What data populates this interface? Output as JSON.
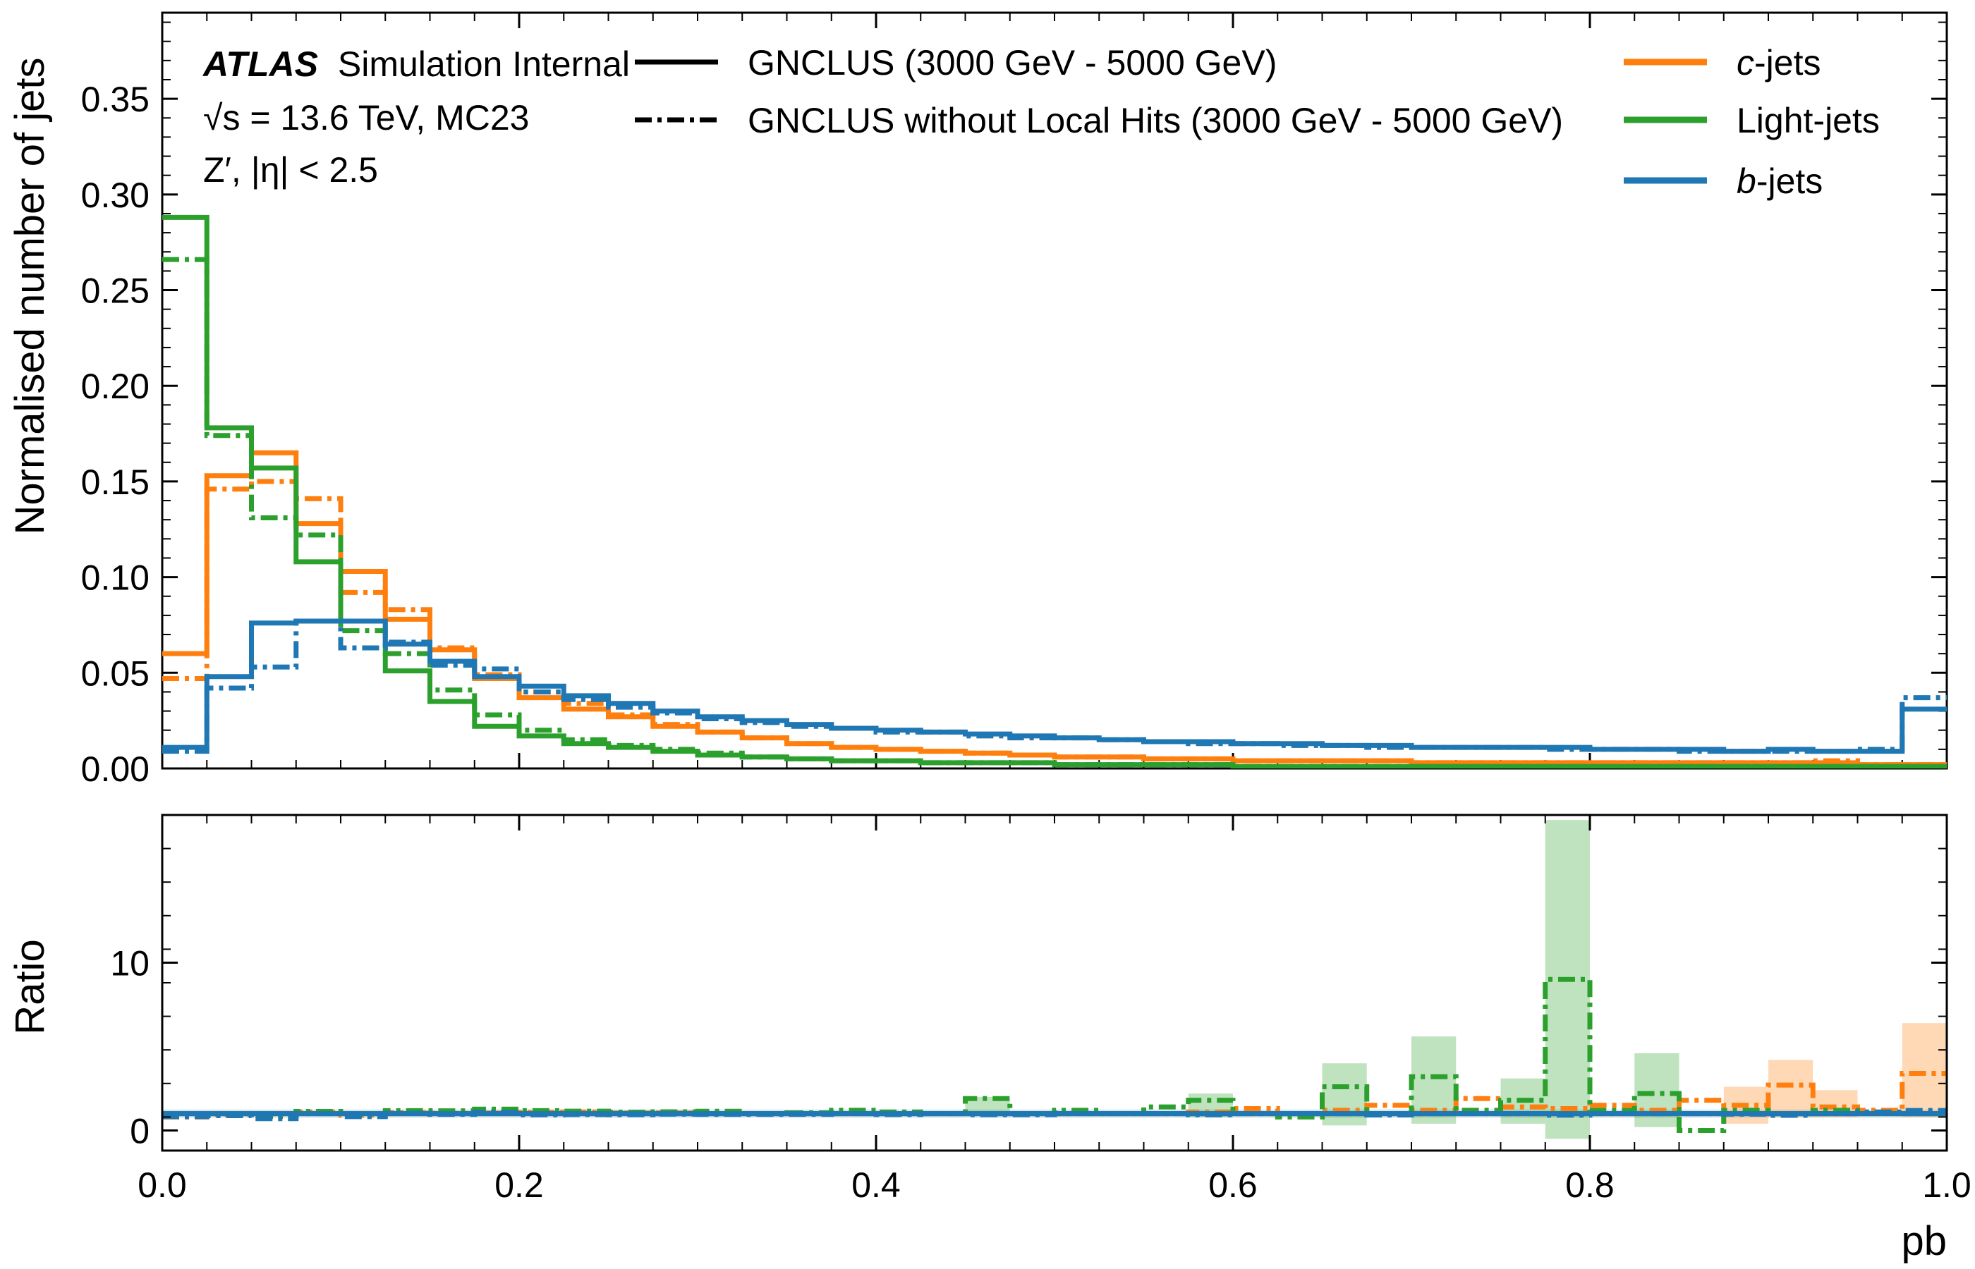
{
  "atlas_label": {
    "experiment": "ATLAS",
    "status": "Simulation Internal",
    "line2": "√s = 13.6 TeV, MC23",
    "line3": "Z′, |η| < 2.5"
  },
  "legend": {
    "styles": [
      {
        "label": "GNCLUS (3000 GeV - 5000 GeV)",
        "dash": "solid"
      },
      {
        "label": "GNCLUS without Local Hits (3000 GeV - 5000 GeV)",
        "dash": "dashdot"
      }
    ],
    "flavours": [
      {
        "prefix": "c",
        "suffix": "-jets",
        "italic": true,
        "color": "#ff7f0e"
      },
      {
        "prefix": "",
        "suffix": "Light-jets",
        "italic": false,
        "color": "#2ca02c"
      },
      {
        "prefix": "b",
        "suffix": "-jets",
        "italic": true,
        "color": "#1f77b4"
      }
    ]
  },
  "colors": {
    "c": "#ff7f0e",
    "light": "#2ca02c",
    "b": "#1f77b4"
  },
  "chart_data": [
    {
      "type": "line",
      "panel": "main",
      "step": "histogram",
      "xlabel": "pb",
      "ylabel": "Normalised number of jets",
      "xlim": [
        0.0,
        1.0
      ],
      "ylim": [
        0.0,
        0.395
      ],
      "xticks": [
        "0.0",
        "0.2",
        "0.4",
        "0.6",
        "0.8",
        "1.0"
      ],
      "yticks": [
        "0.00",
        "0.05",
        "0.10",
        "0.15",
        "0.20",
        "0.25",
        "0.30",
        "0.35"
      ],
      "bin_width": 0.025,
      "bin_edges_start": 0.0,
      "series": [
        {
          "name": "c-jets",
          "flavour": "c",
          "style": "solid",
          "values": [
            0.06,
            0.153,
            0.165,
            0.128,
            0.103,
            0.078,
            0.062,
            0.047,
            0.037,
            0.031,
            0.027,
            0.022,
            0.019,
            0.016,
            0.013,
            0.011,
            0.01,
            0.009,
            0.008,
            0.007,
            0.006,
            0.006,
            0.005,
            0.005,
            0.004,
            0.004,
            0.004,
            0.004,
            0.003,
            0.003,
            0.003,
            0.003,
            0.003,
            0.003,
            0.003,
            0.003,
            0.003,
            0.003,
            0.002,
            0.002
          ]
        },
        {
          "name": "c-jets",
          "flavour": "c",
          "style": "dashdot",
          "values": [
            0.047,
            0.146,
            0.15,
            0.141,
            0.092,
            0.083,
            0.063,
            0.049,
            0.04,
            0.034,
            0.028,
            0.023,
            0.019,
            0.016,
            0.013,
            0.011,
            0.01,
            0.009,
            0.008,
            0.007,
            0.006,
            0.006,
            0.005,
            0.005,
            0.004,
            0.004,
            0.004,
            0.004,
            0.003,
            0.003,
            0.003,
            0.003,
            0.003,
            0.003,
            0.003,
            0.003,
            0.003,
            0.004,
            0.002,
            0.002
          ]
        },
        {
          "name": "Light-jets",
          "flavour": "light",
          "style": "solid",
          "values": [
            0.288,
            0.178,
            0.157,
            0.108,
            0.077,
            0.051,
            0.035,
            0.022,
            0.017,
            0.013,
            0.011,
            0.009,
            0.007,
            0.006,
            0.005,
            0.004,
            0.004,
            0.003,
            0.003,
            0.003,
            0.002,
            0.002,
            0.002,
            0.002,
            0.001,
            0.001,
            0.001,
            0.001,
            0.001,
            0.001,
            0.001,
            0.001,
            0.001,
            0.001,
            0.001,
            0.001,
            0.001,
            0.001,
            0.001,
            0.001
          ]
        },
        {
          "name": "Light-jets",
          "flavour": "light",
          "style": "dashdot",
          "values": [
            0.266,
            0.174,
            0.131,
            0.122,
            0.072,
            0.06,
            0.041,
            0.028,
            0.02,
            0.015,
            0.012,
            0.01,
            0.008,
            0.006,
            0.005,
            0.004,
            0.004,
            0.003,
            0.003,
            0.003,
            0.002,
            0.002,
            0.002,
            0.002,
            0.001,
            0.001,
            0.001,
            0.001,
            0.001,
            0.001,
            0.001,
            0.001,
            0.001,
            0.001,
            0.001,
            0.001,
            0.001,
            0.001,
            0.001,
            0.001
          ]
        },
        {
          "name": "b-jets",
          "flavour": "b",
          "style": "solid",
          "values": [
            0.011,
            0.048,
            0.076,
            0.077,
            0.077,
            0.065,
            0.056,
            0.048,
            0.043,
            0.038,
            0.034,
            0.03,
            0.027,
            0.025,
            0.023,
            0.021,
            0.02,
            0.019,
            0.018,
            0.017,
            0.016,
            0.015,
            0.014,
            0.014,
            0.013,
            0.013,
            0.012,
            0.012,
            0.011,
            0.011,
            0.011,
            0.011,
            0.01,
            0.01,
            0.01,
            0.009,
            0.01,
            0.009,
            0.009,
            0.031
          ]
        },
        {
          "name": "b-jets",
          "flavour": "b",
          "style": "dashdot",
          "values": [
            0.009,
            0.042,
            0.053,
            0.077,
            0.063,
            0.066,
            0.054,
            0.052,
            0.04,
            0.036,
            0.032,
            0.029,
            0.026,
            0.024,
            0.022,
            0.021,
            0.019,
            0.019,
            0.017,
            0.016,
            0.016,
            0.015,
            0.014,
            0.013,
            0.013,
            0.012,
            0.012,
            0.011,
            0.011,
            0.011,
            0.011,
            0.01,
            0.01,
            0.01,
            0.009,
            0.009,
            0.009,
            0.009,
            0.01,
            0.037
          ]
        }
      ]
    },
    {
      "type": "line",
      "panel": "ratio",
      "step": "histogram",
      "xlabel": "pb",
      "ylabel": "Ratio",
      "xlim": [
        0.0,
        1.0
      ],
      "ylim": [
        -1.2,
        18.8
      ],
      "xticks": [
        "0.0",
        "0.2",
        "0.4",
        "0.6",
        "0.8",
        "1.0"
      ],
      "yticks": [
        "0",
        "10"
      ],
      "bin_width": 0.025,
      "series": [
        {
          "name": "c-jets",
          "flavour": "c",
          "style": "solid",
          "values": [
            1,
            1,
            1,
            1,
            1,
            1,
            1,
            1,
            1,
            1,
            1,
            1,
            1,
            1,
            1,
            1,
            1,
            1,
            1,
            1,
            1,
            1,
            1,
            1,
            1,
            1,
            1,
            1,
            1,
            1,
            1,
            1,
            1,
            1,
            1,
            1,
            1,
            1,
            1,
            1
          ]
        },
        {
          "name": "c-jets",
          "flavour": "c",
          "style": "dashdot",
          "values": [
            0.8,
            0.95,
            0.91,
            1.1,
            0.9,
            1.06,
            1.02,
            1.04,
            1.08,
            1.1,
            1.04,
            1.05,
            1.0,
            1.0,
            1.0,
            1.0,
            1.0,
            1.0,
            1.0,
            1.0,
            1.0,
            1.0,
            1.0,
            1.1,
            1.3,
            1.0,
            1.2,
            1.5,
            1.2,
            1.9,
            1.4,
            1.3,
            1.5,
            1.2,
            1.8,
            1.5,
            2.7,
            1.4,
            1.2,
            3.4
          ]
        },
        {
          "name": "Light-jets",
          "flavour": "light",
          "style": "solid",
          "values": [
            1,
            1,
            1,
            1,
            1,
            1,
            1,
            1,
            1,
            1,
            1,
            1,
            1,
            1,
            1,
            1,
            1,
            1,
            1,
            1,
            1,
            1,
            1,
            1,
            1,
            1,
            1,
            1,
            1,
            1,
            1,
            1,
            1,
            1,
            1,
            1,
            1,
            1,
            1,
            1
          ]
        },
        {
          "name": "Light-jets",
          "flavour": "light",
          "style": "dashdot",
          "values": [
            0.92,
            0.98,
            0.83,
            1.13,
            0.94,
            1.18,
            1.17,
            1.27,
            1.18,
            1.15,
            1.09,
            1.11,
            1.14,
            1.0,
            1.05,
            1.2,
            1.1,
            1.0,
            1.9,
            1.0,
            1.2,
            1.0,
            1.4,
            1.8,
            1.0,
            0.8,
            2.6,
            1.0,
            3.2,
            1.2,
            1.8,
            9.0,
            1.2,
            2.2,
            0.0,
            1.2,
            1.0,
            1.2,
            1.0,
            1.0
          ]
        },
        {
          "name": "b-jets",
          "flavour": "b",
          "style": "solid",
          "values": [
            1,
            1,
            1,
            1,
            1,
            1,
            1,
            1,
            1,
            1,
            1,
            1,
            1,
            1,
            1,
            1,
            1,
            1,
            1,
            1,
            1,
            1,
            1,
            1,
            1,
            1,
            1,
            1,
            1,
            1,
            1,
            1,
            1,
            1,
            1,
            1,
            1,
            1,
            1,
            1
          ]
        },
        {
          "name": "b-jets",
          "flavour": "b",
          "style": "dashdot",
          "values": [
            0.82,
            0.88,
            0.7,
            1.0,
            0.82,
            1.02,
            0.96,
            1.08,
            0.93,
            0.95,
            0.94,
            0.97,
            0.96,
            0.96,
            0.96,
            1.0,
            0.95,
            1.0,
            0.94,
            0.94,
            1.0,
            1.0,
            1.0,
            0.93,
            1.0,
            1.0,
            1.0,
            0.92,
            1.0,
            1.0,
            1.0,
            0.91,
            1.0,
            1.0,
            1.0,
            0.97,
            0.9,
            1.0,
            1.1,
            1.19
          ]
        }
      ],
      "uncertainty_bands": [
        {
          "flavour": "light",
          "bins": [
            {
              "x0": 0.65,
              "x1": 0.675,
              "lo": 0.3,
              "hi": 4.0
            },
            {
              "x0": 0.7,
              "x1": 0.725,
              "lo": 0.4,
              "hi": 5.6
            },
            {
              "x0": 0.75,
              "x1": 0.775,
              "lo": 0.4,
              "hi": 3.1
            },
            {
              "x0": 0.775,
              "x1": 0.8,
              "lo": -0.5,
              "hi": 18.5
            },
            {
              "x0": 0.825,
              "x1": 0.85,
              "lo": 0.2,
              "hi": 4.6
            },
            {
              "x0": 0.575,
              "x1": 0.6,
              "lo": 0.8,
              "hi": 2.2
            },
            {
              "x0": 0.45,
              "x1": 0.475,
              "lo": 0.9,
              "hi": 2.0
            }
          ]
        },
        {
          "flavour": "c",
          "bins": [
            {
              "x0": 0.875,
              "x1": 0.9,
              "lo": 0.4,
              "hi": 2.6
            },
            {
              "x0": 0.9,
              "x1": 0.925,
              "lo": 0.8,
              "hi": 4.2
            },
            {
              "x0": 0.925,
              "x1": 0.95,
              "lo": 0.8,
              "hi": 2.4
            },
            {
              "x0": 0.975,
              "x1": 1.0,
              "lo": 0.8,
              "hi": 6.4
            }
          ]
        }
      ]
    }
  ]
}
